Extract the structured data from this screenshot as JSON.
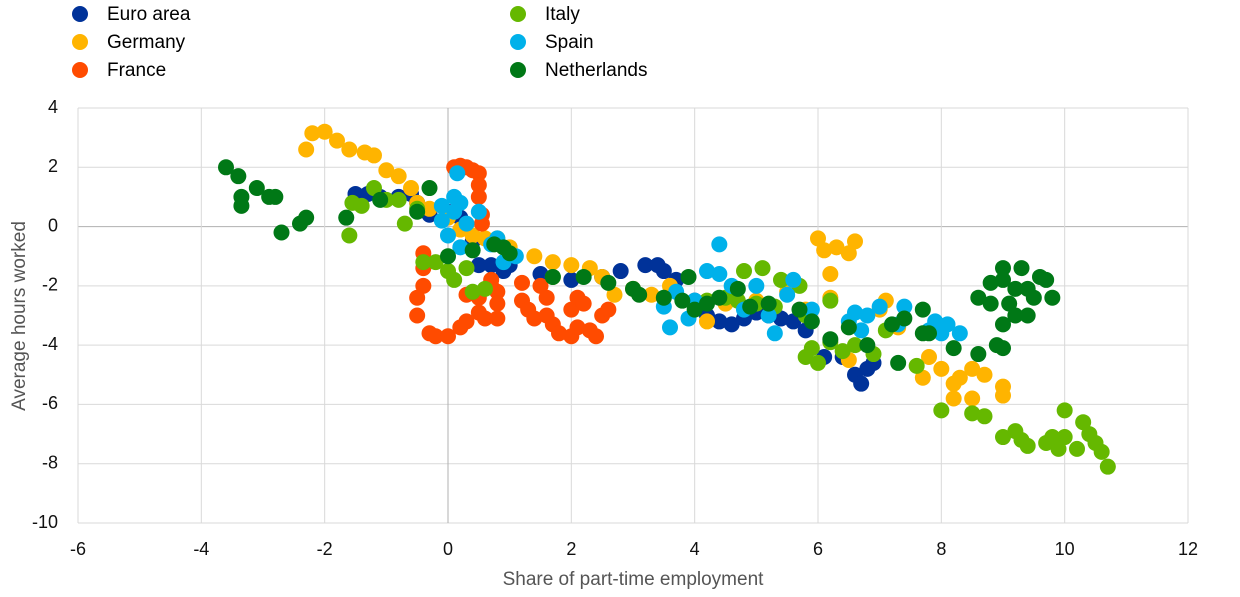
{
  "chart_data": {
    "type": "scatter",
    "x_label": "Share of part-time employment",
    "y_label": "Average hours worked",
    "xlim": [
      -6,
      12
    ],
    "xticks": [
      -6,
      -4,
      -2,
      0,
      2,
      4,
      6,
      8,
      10,
      12
    ],
    "ylim": [
      -10,
      4
    ],
    "yticks": [
      -10,
      -8,
      -6,
      -4,
      -2,
      0,
      2,
      4
    ],
    "grid": true,
    "series": [
      {
        "name": "Euro area",
        "color": "#003299",
        "x": [
          -1.5,
          -1.3,
          -1.1,
          -0.8,
          -0.6,
          -0.5,
          -0.3,
          0,
          0.2,
          0.4,
          0.5,
          0.7,
          0.9,
          1.0,
          1.5,
          2.0,
          2.5,
          2.8,
          3.2,
          3.4,
          3.5,
          3.7,
          4.0,
          4.2,
          4.4,
          4.6,
          4.8,
          5.0,
          5.2,
          5.4,
          5.6,
          5.8,
          6.1,
          6.4,
          6.6,
          6.7,
          6.8,
          6.9
        ],
        "values": [
          1.1,
          1.1,
          1.0,
          1.0,
          1.1,
          0.8,
          0.4,
          0.5,
          0.3,
          -0.5,
          -1.3,
          -1.3,
          -1.5,
          -1.3,
          -1.6,
          -1.8,
          -1.7,
          -1.5,
          -1.3,
          -1.3,
          -1.5,
          -1.8,
          -2.5,
          -3.0,
          -3.2,
          -3.3,
          -3.1,
          -2.9,
          -3.0,
          -3.1,
          -3.2,
          -3.5,
          -4.4,
          -4.4,
          -5.0,
          -5.3,
          -4.8,
          -4.6
        ]
      },
      {
        "name": "Germany",
        "color": "#ffb400",
        "x": [
          -2.3,
          -2.2,
          -2.0,
          -1.8,
          -1.6,
          -1.35,
          -1.2,
          -1.0,
          -0.8,
          -0.6,
          -0.5,
          -0.3,
          0,
          0.2,
          0.4,
          0.6,
          0.8,
          1.0,
          1.4,
          1.7,
          2.0,
          2.3,
          2.5,
          2.7,
          3.0,
          3.3,
          3.6,
          4.2,
          4.5,
          5.0,
          5.5,
          5.8,
          6.0,
          6.1,
          6.2,
          6.3,
          6.5,
          6.6,
          6.2,
          6.5,
          7.0,
          7.1,
          7.3,
          7.7,
          7.8,
          8.0,
          8.2,
          8.3,
          8.5,
          8.7,
          8.2,
          8.5,
          9.0,
          9.0
        ],
        "values": [
          2.6,
          3.15,
          3.2,
          2.9,
          2.6,
          2.5,
          2.4,
          1.9,
          1.7,
          1.3,
          0.8,
          0.6,
          0.3,
          -0.1,
          -0.3,
          -0.4,
          -0.4,
          -0.7,
          -1.0,
          -1.2,
          -1.3,
          -1.4,
          -1.7,
          -2.3,
          -2.1,
          -2.3,
          -2.0,
          -3.2,
          -2.6,
          -2.5,
          -2.2,
          -2.8,
          -0.4,
          -0.8,
          -1.6,
          -0.7,
          -0.9,
          -0.5,
          -2.4,
          -4.5,
          -2.8,
          -2.5,
          -3.4,
          -5.1,
          -4.4,
          -4.8,
          -5.3,
          -5.1,
          -4.8,
          -5.0,
          -5.8,
          -5.8,
          -5.4,
          -5.7
        ]
      },
      {
        "name": "France",
        "color": "#ff4b00",
        "x": [
          -0.4,
          -0.4,
          -0.4,
          -0.5,
          -0.5,
          -0.3,
          -0.2,
          0,
          0.2,
          0.3,
          0.3,
          0.5,
          0.5,
          0.6,
          0.7,
          0.7,
          0.8,
          0.8,
          0.8,
          0.1,
          0.2,
          0.3,
          0.4,
          0.5,
          0.5,
          0.5,
          0.55,
          0.55,
          1.2,
          1.2,
          1.3,
          1.4,
          1.5,
          1.6,
          1.6,
          1.7,
          1.8,
          2.0,
          2.0,
          2.1,
          2.1,
          2.2,
          2.3,
          2.4,
          2.5,
          2.6
        ],
        "values": [
          -0.9,
          -1.4,
          -2.0,
          -2.4,
          -3.0,
          -3.6,
          -3.7,
          -3.7,
          -3.4,
          -3.2,
          -2.3,
          -2.4,
          -2.9,
          -3.1,
          -2.0,
          -1.8,
          -2.2,
          -2.6,
          -3.1,
          2.0,
          2.05,
          2.0,
          1.9,
          1.8,
          1.4,
          1.0,
          0.4,
          0.1,
          -1.9,
          -2.5,
          -2.8,
          -3.1,
          -2.0,
          -3.0,
          -2.4,
          -3.3,
          -3.6,
          -3.7,
          -2.8,
          -2.4,
          -3.4,
          -2.6,
          -3.5,
          -3.7,
          -3.0,
          -2.8
        ]
      },
      {
        "name": "Italy",
        "color": "#65b800",
        "x": [
          -1.6,
          -1.55,
          -1.4,
          -1.2,
          -1.0,
          -0.8,
          -0.7,
          -0.5,
          -0.4,
          -0.2,
          0,
          0.1,
          0.3,
          0.4,
          0.6,
          1.7,
          4.2,
          4.5,
          4.7,
          4.8,
          5.0,
          5.1,
          5.3,
          5.4,
          5.7,
          5.8,
          5.9,
          5.8,
          6.0,
          6.2,
          6.2,
          6.4,
          6.6,
          6.9,
          7.1,
          7.6,
          8.0,
          8.5,
          8.7,
          9.0,
          9.2,
          9.3,
          9.4,
          9.7,
          9.9,
          10.0,
          10.0,
          10.2,
          10.3,
          10.4,
          10.5,
          10.6,
          10.7,
          9.8
        ],
        "values": [
          -0.3,
          0.8,
          0.7,
          1.3,
          0.9,
          0.9,
          0.1,
          0.6,
          -1.2,
          -1.2,
          -1.5,
          -1.8,
          -1.4,
          -2.2,
          -2.1,
          -1.7,
          -2.5,
          -2.4,
          -2.5,
          -1.5,
          -2.6,
          -1.4,
          -2.7,
          -1.8,
          -2.0,
          -3.0,
          -4.1,
          -4.4,
          -4.6,
          -3.9,
          -2.5,
          -4.2,
          -4.0,
          -4.3,
          -3.5,
          -4.7,
          -6.2,
          -6.3,
          -6.4,
          -7.1,
          -6.9,
          -7.2,
          -7.4,
          -7.3,
          -7.5,
          -7.1,
          -6.2,
          -7.5,
          -6.6,
          -7.0,
          -7.3,
          -7.6,
          -8.1,
          -7.1
        ]
      },
      {
        "name": "Spain",
        "color": "#00b1ea",
        "x": [
          -0.1,
          -0.1,
          0,
          0.1,
          0.1,
          0.15,
          0.2,
          0.2,
          0.3,
          0.5,
          0.7,
          0.8,
          0.9,
          1.1,
          3.5,
          3.6,
          3.7,
          3.9,
          4.0,
          4.2,
          4.4,
          4.4,
          4.6,
          4.8,
          5.0,
          5.2,
          5.3,
          5.5,
          5.6,
          5.9,
          6.6,
          6.7,
          6.8,
          7.0,
          7.3,
          7.4,
          7.8,
          7.9,
          8.0,
          8.1,
          8.3,
          6.5
        ],
        "values": [
          0.7,
          0.2,
          -0.3,
          1.0,
          0.5,
          1.8,
          0.8,
          -0.7,
          0.1,
          0.5,
          -0.6,
          -0.4,
          -1.2,
          -1.0,
          -2.7,
          -3.4,
          -2.2,
          -3.1,
          -2.5,
          -1.5,
          -0.6,
          -1.6,
          -2.0,
          -2.8,
          -2.0,
          -3.0,
          -3.6,
          -2.3,
          -1.8,
          -2.8,
          -2.9,
          -3.5,
          -3.0,
          -2.7,
          -3.3,
          -2.7,
          -3.5,
          -3.2,
          -3.6,
          -3.3,
          -3.6,
          -3.2
        ]
      },
      {
        "name": "Netherlands",
        "color": "#007816",
        "x": [
          -3.6,
          -3.4,
          -3.35,
          -3.35,
          -3.1,
          -2.9,
          -2.8,
          -2.7,
          -2.4,
          -2.3,
          -1.65,
          -1.1,
          -0.5,
          -0.3,
          0,
          0.4,
          0.75,
          0.9,
          1.0,
          1.7,
          2.2,
          2.6,
          3.0,
          3.1,
          3.5,
          3.8,
          3.9,
          4.0,
          4.2,
          4.4,
          4.7,
          4.9,
          5.2,
          5.7,
          5.9,
          6.2,
          6.5,
          6.8,
          7.2,
          7.3,
          7.4,
          7.7,
          7.7,
          7.8,
          8.2,
          8.6,
          8.6,
          8.8,
          8.8,
          8.9,
          9.0,
          9.0,
          9.0,
          9.0,
          9.1,
          9.2,
          9.2,
          9.3,
          9.4,
          9.5,
          9.6,
          9.7,
          9.8,
          9.4
        ],
        "values": [
          2.0,
          1.7,
          1.0,
          0.7,
          1.3,
          1.0,
          1.0,
          -0.2,
          0.1,
          0.3,
          0.3,
          0.9,
          0.5,
          1.3,
          -1.0,
          -0.8,
          -0.6,
          -0.7,
          -0.9,
          -1.7,
          -1.7,
          -1.9,
          -2.1,
          -2.3,
          -2.4,
          -2.5,
          -1.7,
          -2.8,
          -2.6,
          -2.4,
          -2.1,
          -2.7,
          -2.6,
          -2.8,
          -3.2,
          -3.8,
          -3.4,
          -4.0,
          -3.3,
          -4.6,
          -3.1,
          -3.6,
          -2.8,
          -3.6,
          -4.1,
          -2.4,
          -4.3,
          -1.9,
          -2.6,
          -4.0,
          -1.4,
          -1.8,
          -3.3,
          -4.1,
          -2.6,
          -2.1,
          -3.0,
          -1.4,
          -2.1,
          -2.4,
          -1.7,
          -1.8,
          -2.4,
          -3.0
        ]
      }
    ]
  }
}
